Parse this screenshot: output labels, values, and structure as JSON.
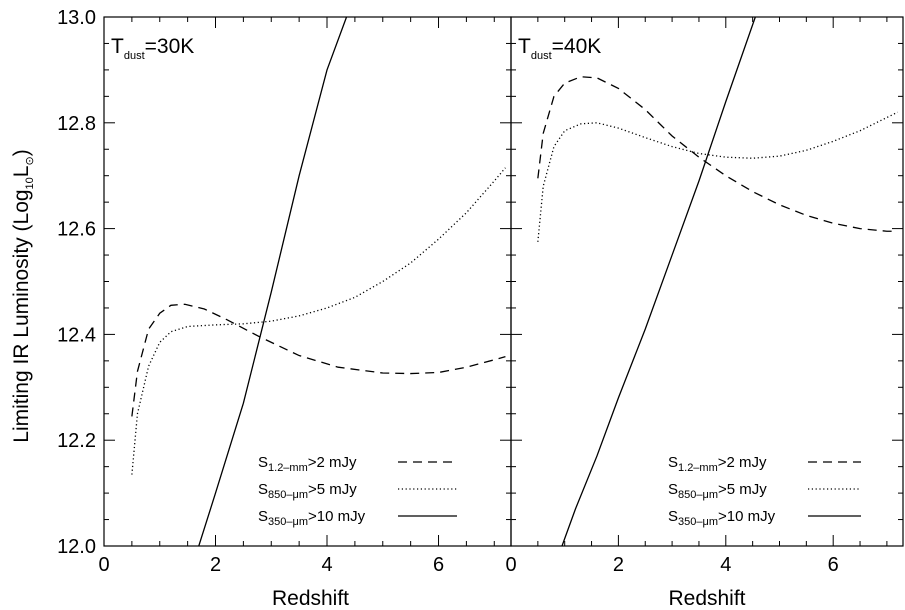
{
  "chart_data": {
    "type": "line",
    "ylabel": "Limiting IR Luminosity (Log",
    "ylabel_sub": "10",
    "ylabel_tail": "L",
    "ylabel_symbol": "⊙",
    "ylabel_close": ")",
    "ylim": [
      12.0,
      13.0
    ],
    "yticks": [
      "12.0",
      "12.2",
      "12.4",
      "12.6",
      "12.8",
      "13.0"
    ],
    "xlim": [
      0,
      7.3
    ],
    "xticks": [
      "0",
      "2",
      "4",
      "6"
    ],
    "legend_entries": [
      {
        "S": "S",
        "sub": "1.2–mm",
        "rest": ">2 mJy",
        "style": "dashed"
      },
      {
        "S": "S",
        "sub": "850–μm",
        "rest": ">5 mJy",
        "style": "dotted"
      },
      {
        "S": "S",
        "sub": "350–μm",
        "rest": ">10 mJy",
        "style": "solid"
      }
    ],
    "panels": [
      {
        "xlabel": "Redshift",
        "label_T": "T",
        "label_sub": "dust",
        "label_rest": "=30K",
        "series": [
          {
            "style": "dashed",
            "x": [
              0.5,
              0.6,
              0.8,
              1.0,
              1.2,
              1.45,
              1.8,
              2.2,
              2.8,
              3.5,
              4.2,
              5.0,
              5.5,
              6.0,
              6.5,
              7.0,
              7.2
            ],
            "y": [
              12.245,
              12.33,
              12.41,
              12.44,
              12.455,
              12.457,
              12.448,
              12.428,
              12.395,
              12.36,
              12.338,
              12.327,
              12.326,
              12.328,
              12.338,
              12.352,
              12.358
            ]
          },
          {
            "style": "dotted",
            "x": [
              0.5,
              0.6,
              0.8,
              1.0,
              1.2,
              1.5,
              2.0,
              2.5,
              3.0,
              3.5,
              4.0,
              4.5,
              5.0,
              5.5,
              6.0,
              6.5,
              7.0,
              7.2
            ],
            "y": [
              12.135,
              12.25,
              12.34,
              12.385,
              12.405,
              12.415,
              12.418,
              12.42,
              12.425,
              12.435,
              12.45,
              12.47,
              12.5,
              12.535,
              12.58,
              12.63,
              12.69,
              12.715
            ]
          },
          {
            "style": "solid",
            "x": [
              1.7,
              2.0,
              2.5,
              3.0,
              3.5,
              4.0,
              4.35
            ],
            "y": [
              12.0,
              12.1,
              12.27,
              12.48,
              12.7,
              12.9,
              13.0
            ]
          }
        ]
      },
      {
        "xlabel": "Redshift",
        "label_T": "T",
        "label_sub": "dust",
        "label_rest": "=40K",
        "series": [
          {
            "style": "dashed",
            "x": [
              0.5,
              0.6,
              0.8,
              1.0,
              1.3,
              1.6,
              2.0,
              2.5,
              3.0,
              3.5,
              4.0,
              4.5,
              5.0,
              5.5,
              6.0,
              6.5,
              7.0,
              7.2
            ],
            "y": [
              12.695,
              12.78,
              12.85,
              12.875,
              12.887,
              12.885,
              12.865,
              12.825,
              12.775,
              12.735,
              12.7,
              12.67,
              12.645,
              12.625,
              12.61,
              12.6,
              12.595,
              12.595
            ]
          },
          {
            "style": "dotted",
            "x": [
              0.5,
              0.6,
              0.8,
              1.0,
              1.3,
              1.6,
              2.0,
              2.5,
              3.0,
              3.5,
              4.0,
              4.5,
              5.0,
              5.5,
              6.0,
              6.5,
              7.0,
              7.2
            ],
            "y": [
              12.575,
              12.68,
              12.755,
              12.785,
              12.798,
              12.8,
              12.79,
              12.772,
              12.755,
              12.742,
              12.735,
              12.733,
              12.737,
              12.748,
              12.765,
              12.785,
              12.81,
              12.82
            ]
          },
          {
            "style": "solid",
            "x": [
              0.95,
              1.2,
              1.6,
              2.0,
              2.5,
              3.0,
              3.5,
              4.0,
              4.55
            ],
            "y": [
              12.0,
              12.07,
              12.17,
              12.28,
              12.41,
              12.55,
              12.69,
              12.84,
              13.0
            ]
          }
        ]
      }
    ]
  }
}
